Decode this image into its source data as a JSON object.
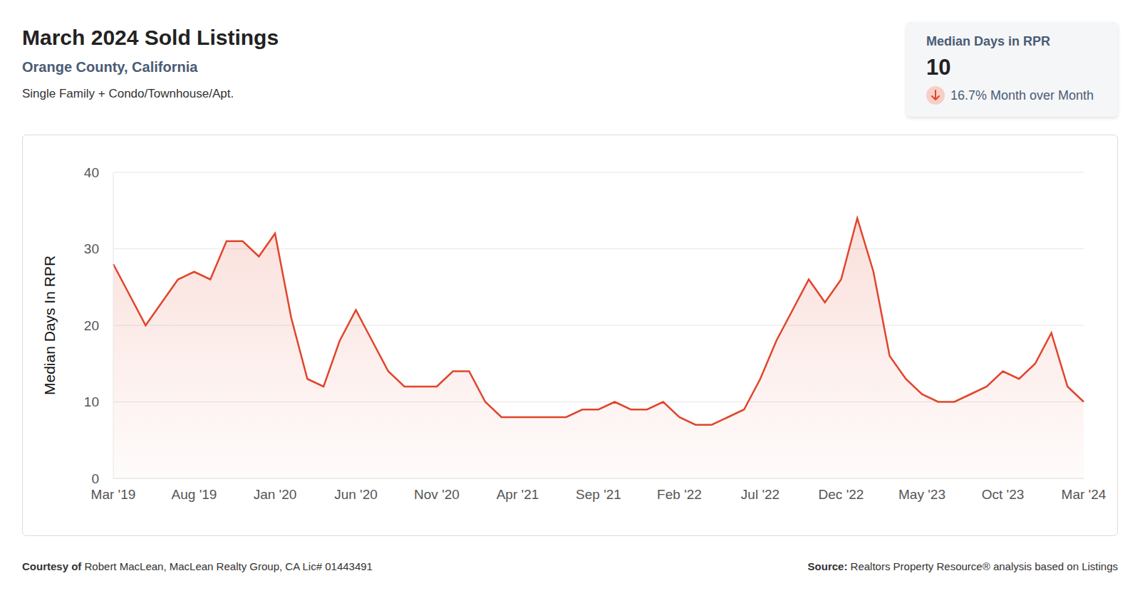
{
  "chart_data": {
    "type": "area",
    "title": "March 2024 Sold Listings",
    "subtitle": "Orange County, California",
    "description": "Single Family + Condo/Townhouse/Apt.",
    "y_label": "Median Days In RPR",
    "color": "#e0452b",
    "grid": true,
    "ylim": [
      0,
      40
    ],
    "yticks": [
      0,
      10,
      20,
      30,
      40
    ],
    "categories": [
      "Mar '19",
      null,
      null,
      null,
      null,
      "Aug '19",
      null,
      null,
      null,
      null,
      "Jan '20",
      null,
      null,
      null,
      null,
      "Jun '20",
      null,
      null,
      null,
      null,
      "Nov '20",
      null,
      null,
      null,
      null,
      "Apr '21",
      null,
      null,
      null,
      null,
      "Sep '21",
      null,
      null,
      null,
      null,
      "Feb '22",
      null,
      null,
      null,
      null,
      "Jul '22",
      null,
      null,
      null,
      null,
      "Dec '22",
      null,
      null,
      null,
      null,
      "May '23",
      null,
      null,
      null,
      null,
      "Oct '23",
      null,
      null,
      null,
      null,
      "Mar '24"
    ],
    "values": [
      28,
      24,
      20,
      23,
      26,
      27,
      26,
      31,
      31,
      29,
      32,
      21,
      13,
      12,
      18,
      22,
      18,
      14,
      12,
      12,
      12,
      14,
      14,
      10,
      8,
      8,
      8,
      8,
      8,
      9,
      9,
      10,
      9,
      9,
      10,
      8,
      7,
      7,
      8,
      9,
      13,
      18,
      22,
      26,
      23,
      26,
      34,
      27,
      16,
      13,
      11,
      10,
      10,
      11,
      12,
      14,
      13,
      15,
      19,
      12,
      10
    ],
    "kpi": {
      "label": "Median Days in RPR",
      "value": 10,
      "change": "16.7%",
      "change_label": "Month over Month"
    },
    "footer": {
      "courtesy_label": "Courtesy of",
      "courtesy": "Robert MacLean, MacLean Realty Group, CA Lic# 01443491",
      "source_label": "Source:",
      "source": "Realtors Property Resource® analysis based on Listings"
    }
  }
}
